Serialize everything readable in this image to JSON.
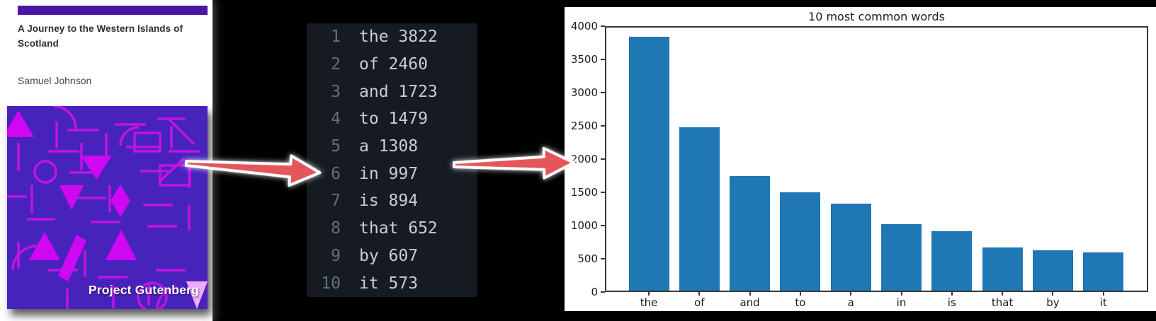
{
  "book_cover": {
    "title": "A Journey to the Western Islands of Scotland",
    "author": "Samuel Johnson",
    "publisher_label": "Project Gutenberg",
    "accent_bar_color": "#4c16a4",
    "art_background": "#4823bb",
    "art_shape_fill": "#cf07f2",
    "art_line_color": "#c013e6"
  },
  "word_list": {
    "rows": [
      {
        "rank": "1",
        "word": "the",
        "count": "3822"
      },
      {
        "rank": "2",
        "word": "of",
        "count": "2460"
      },
      {
        "rank": "3",
        "word": "and",
        "count": "1723"
      },
      {
        "rank": "4",
        "word": "to",
        "count": "1479"
      },
      {
        "rank": "5",
        "word": "a",
        "count": "1308"
      },
      {
        "rank": "6",
        "word": "in",
        "count": "997"
      },
      {
        "rank": "7",
        "word": "is",
        "count": "894"
      },
      {
        "rank": "8",
        "word": "that",
        "count": "652"
      },
      {
        "rank": "9",
        "word": "by",
        "count": "607"
      },
      {
        "rank": "10",
        "word": "it",
        "count": "573"
      }
    ],
    "background": "#161b22",
    "rank_color": "#646e7a",
    "text_color": "#c6cdd5"
  },
  "chart_data": {
    "type": "bar",
    "title": "10 most common words",
    "categories": [
      "the",
      "of",
      "and",
      "to",
      "a",
      "in",
      "is",
      "that",
      "by",
      "it"
    ],
    "values": [
      3822,
      2460,
      1723,
      1479,
      1308,
      997,
      894,
      652,
      607,
      573
    ],
    "xlabel": "",
    "ylabel": "",
    "ylim": [
      0,
      4000
    ],
    "yticks": [
      0,
      500,
      1000,
      1500,
      2000,
      2500,
      3000,
      3500,
      4000
    ],
    "grid": false,
    "legend": false,
    "bar_color": "#1f77b4",
    "background": "#ffffff"
  },
  "arrows": {
    "fill": "#e5565a",
    "outline": "#ffffff"
  }
}
